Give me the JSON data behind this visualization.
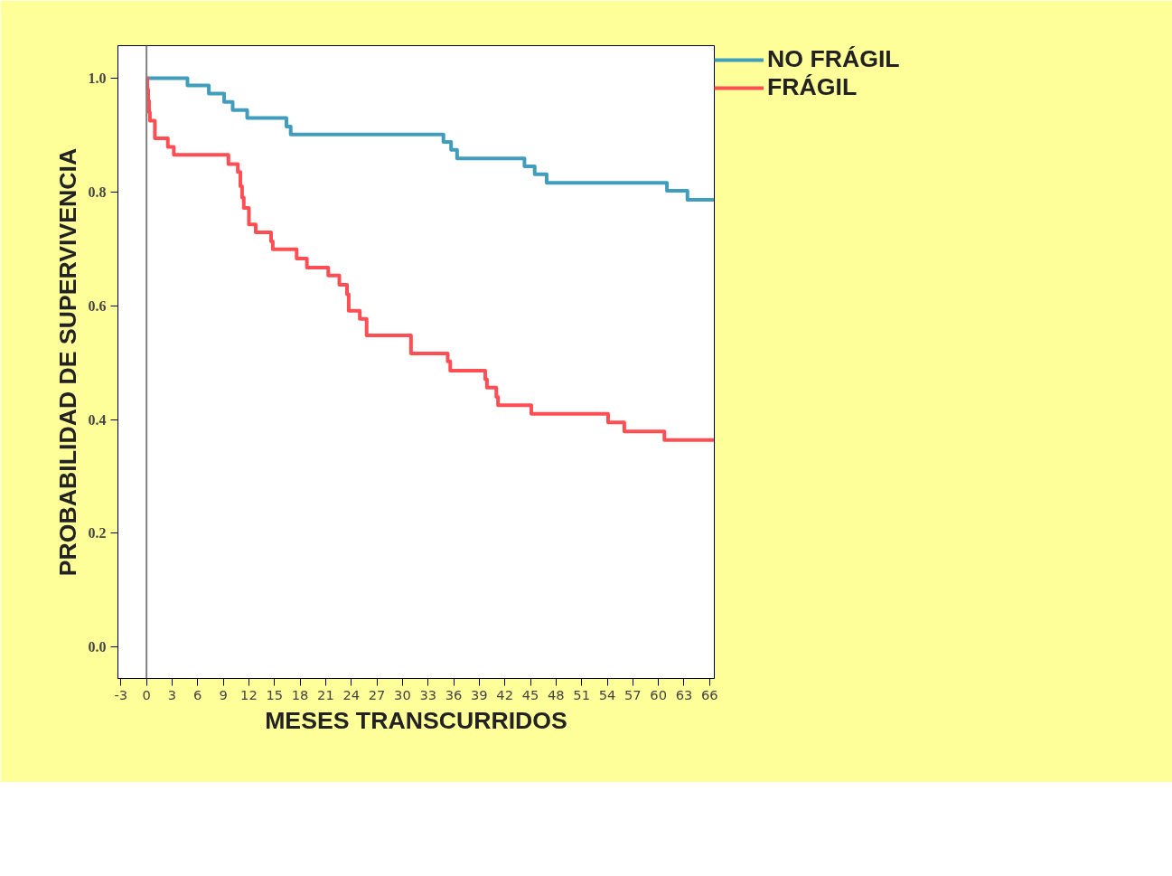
{
  "chart_data": {
    "type": "step",
    "xlabel": "MESES TRANSCURRIDOS",
    "ylabel": "PROBABILIDAD DE SUPERVIVENCIA",
    "xlim": [
      -3.35,
      66.55
    ],
    "ylim": [
      -0.055,
      1.057
    ],
    "xticks": [
      -3,
      0,
      3,
      6,
      9,
      12,
      15,
      18,
      21,
      24,
      27,
      30,
      33,
      36,
      39,
      42,
      45,
      48,
      51,
      54,
      57,
      60,
      63,
      66
    ],
    "yticks": [
      {
        "value": 0,
        "label": "0.0"
      },
      {
        "value": 0.2,
        "label": "0.2"
      },
      {
        "value": 0.4,
        "label": "0.4"
      },
      {
        "value": 0.6,
        "label": "0.6"
      },
      {
        "value": 0.8,
        "label": "0.8"
      },
      {
        "value": 1,
        "label": "1.0"
      }
    ],
    "grid": false,
    "legend": "top right",
    "ref_lines": [
      {
        "axis": "x",
        "value": 0,
        "label": null,
        "color": "#808080"
      }
    ],
    "series": [
      {
        "name": "NO FRÁGIL",
        "color": "#419dbd",
        "x": [
          0,
          4.8,
          7.3,
          9.1,
          10.1,
          11.8,
          16.4,
          16.9,
          34.8,
          35.7,
          36.4,
          44.3,
          45.5,
          46.9,
          61.0,
          63.4,
          66.5
        ],
        "values": [
          1.0,
          0.987,
          0.973,
          0.958,
          0.944,
          0.93,
          0.915,
          0.901,
          0.888,
          0.874,
          0.859,
          0.845,
          0.831,
          0.816,
          0.802,
          0.786,
          0.786
        ]
      },
      {
        "name": "FRÁGIL",
        "color": "#ff4f55",
        "x": [
          0,
          0.1,
          0.2,
          0.3,
          0.4,
          0.98,
          2.5,
          3.2,
          9.6,
          10.7,
          11.0,
          11.2,
          11.4,
          12.0,
          12.8,
          14.6,
          14.8,
          17.6,
          18.8,
          21.3,
          22.6,
          23.5,
          23.7,
          25.0,
          25.8,
          31.0,
          35.3,
          35.6,
          39.7,
          39.9,
          41.0,
          41.2,
          45.1,
          54.1,
          56.0,
          60.7,
          66.5
        ],
        "values": [
          1.0,
          0.98,
          0.96,
          0.94,
          0.925,
          0.894,
          0.879,
          0.865,
          0.849,
          0.835,
          0.81,
          0.79,
          0.772,
          0.743,
          0.729,
          0.713,
          0.699,
          0.683,
          0.667,
          0.653,
          0.637,
          0.62,
          0.591,
          0.577,
          0.548,
          0.516,
          0.502,
          0.486,
          0.471,
          0.456,
          0.44,
          0.425,
          0.41,
          0.395,
          0.379,
          0.364,
          0.364
        ]
      }
    ]
  }
}
